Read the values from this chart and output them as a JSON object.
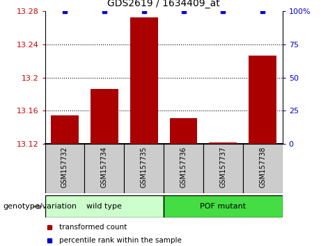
{
  "title": "GDS2619 / 1634409_at",
  "samples": [
    "GSM157732",
    "GSM157734",
    "GSM157735",
    "GSM157736",
    "GSM157737",
    "GSM157738"
  ],
  "bar_values": [
    13.154,
    13.186,
    13.272,
    13.151,
    13.122,
    13.226
  ],
  "percentile_values": [
    100,
    100,
    100,
    100,
    100,
    100
  ],
  "ylim": [
    13.12,
    13.28
  ],
  "yticks": [
    13.12,
    13.16,
    13.2,
    13.24,
    13.28
  ],
  "ytick_labels": [
    "13.12",
    "13.16",
    "13.2",
    "13.24",
    "13.28"
  ],
  "right_ylim": [
    0,
    100
  ],
  "right_yticks": [
    0,
    25,
    50,
    75,
    100
  ],
  "right_ytick_labels": [
    "0",
    "25",
    "50",
    "75",
    "100%"
  ],
  "grid_yticks": [
    13.16,
    13.2,
    13.24
  ],
  "bar_color": "#aa0000",
  "dot_color": "#0000cc",
  "groups": [
    {
      "label": "wild type",
      "indices": [
        0,
        1,
        2
      ],
      "color": "#ccffcc"
    },
    {
      "label": "POF mutant",
      "indices": [
        3,
        4,
        5
      ],
      "color": "#44dd44"
    }
  ],
  "group_label": "genotype/variation",
  "legend_items": [
    {
      "color": "#aa0000",
      "label": "transformed count"
    },
    {
      "color": "#0000cc",
      "label": "percentile rank within the sample"
    }
  ],
  "bar_bottom": 13.12,
  "bar_width": 0.7,
  "sample_bg_color": "#cccccc",
  "plot_bg_color": "#ffffff"
}
